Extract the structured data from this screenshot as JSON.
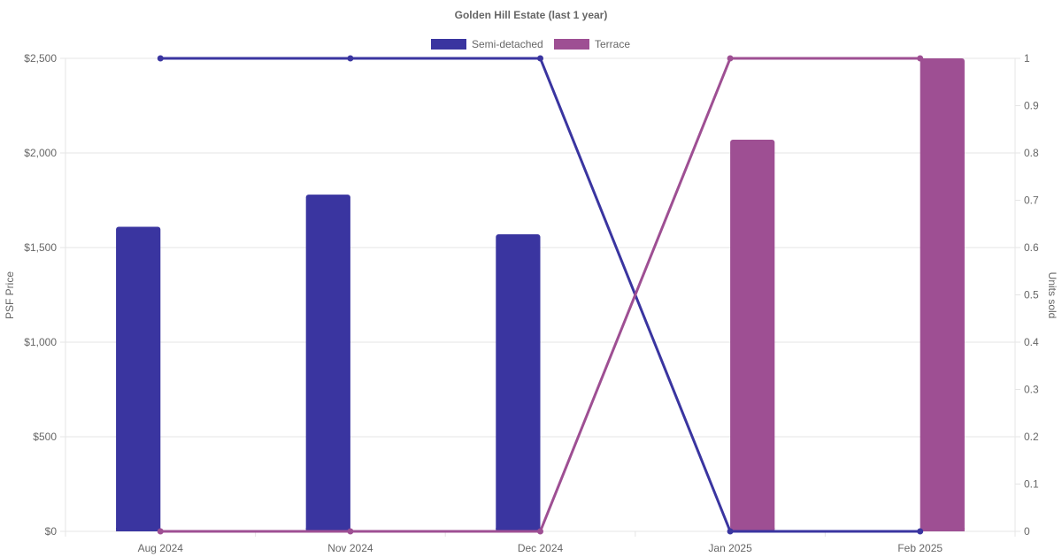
{
  "chart_data": {
    "type": "bar",
    "title": "Golden Hill Estate (last 1 year)",
    "categories": [
      "Aug 2024",
      "Nov 2024",
      "Dec 2024",
      "Jan 2025",
      "Feb 2025"
    ],
    "y_left": {
      "label": "PSF Price",
      "range": [
        0,
        2500
      ],
      "ticks": [
        0,
        500,
        1000,
        1500,
        2000,
        2500
      ],
      "tick_labels": [
        "$0",
        "$500",
        "$1,000",
        "$1,500",
        "$2,000",
        "$2,500"
      ]
    },
    "y_right": {
      "label": "Units sold",
      "range": [
        0,
        1
      ],
      "ticks": [
        0,
        0.1,
        0.2,
        0.3,
        0.4,
        0.5,
        0.6,
        0.7,
        0.8,
        0.9,
        1
      ],
      "tick_labels": [
        "0",
        "0.1",
        "0.2",
        "0.3",
        "0.4",
        "0.5",
        "0.6",
        "0.7",
        "0.8",
        "0.9",
        "1"
      ]
    },
    "legend": {
      "placement": "top-center",
      "entries": [
        "Semi-detached",
        "Terrace"
      ]
    },
    "grid": true,
    "series": [
      {
        "name": "Semi-detached",
        "color": "#3a35a0",
        "bar_values": [
          1610,
          1780,
          1570,
          null,
          null
        ],
        "line_values": [
          1,
          1,
          1,
          0,
          0
        ]
      },
      {
        "name": "Terrace",
        "color": "#9e4f93",
        "bar_values": [
          null,
          null,
          null,
          2070,
          2500
        ],
        "line_values": [
          0,
          0,
          0,
          1,
          1
        ]
      }
    ]
  }
}
